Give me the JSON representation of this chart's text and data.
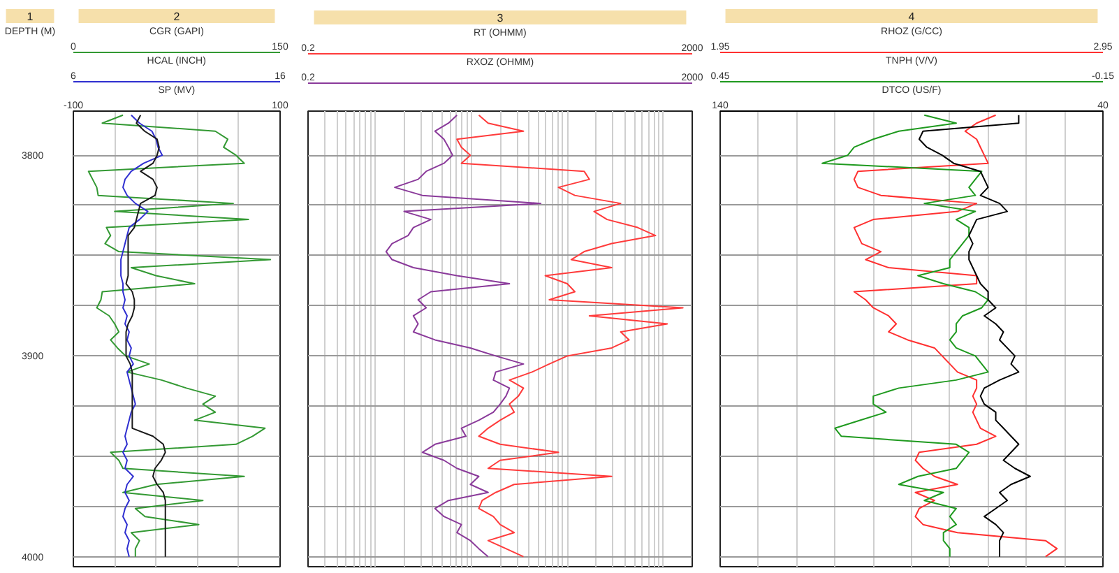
{
  "chart_data": [
    {
      "type": "line",
      "title": "2",
      "annotations": [
        "1"
      ],
      "ylabel": "DEPTH (M)",
      "xlabel": "CGR (GAPI)",
      "x2label": "HCAL (INCH)",
      "xlim": [
        0,
        150
      ],
      "xticks": [
        0,
        {
          "value": 30,
          "label": null
        },
        {
          "value": 60,
          "label": null
        },
        {
          "value": 90,
          "label": null
        },
        {
          "value": 120,
          "label": null
        },
        150
      ],
      "x2lim": [
        6,
        16
      ],
      "x2ticks": [
        6,
        16
      ],
      "ylim": [
        4005,
        3778
      ],
      "yticks": [
        3800,
        {
          "value": 3825,
          "label": null
        },
        {
          "value": 3850,
          "label": null
        },
        {
          "value": 3875,
          "label": null
        },
        3900,
        {
          "value": 3925,
          "label": null
        },
        {
          "value": 3950,
          "label": null
        },
        {
          "value": 3975,
          "label": null
        },
        4000
      ],
      "grid": true,
      "series": [
        {
          "color": "#339933",
          "x": [
            36,
            21,
            103,
            112,
            109,
            118,
            124,
            11,
            14,
            17,
            18,
            116,
            30,
            127,
            24,
            27,
            23,
            33,
            143,
            42,
            60,
            88,
            21,
            20,
            17,
            26,
            30,
            33,
            27,
            32,
            38,
            55,
            39,
            64,
            82,
            103,
            94,
            103,
            88,
            139,
            130,
            118,
            27,
            33,
            36,
            124,
            60,
            36,
            94,
            45,
            52,
            91,
            42,
            48,
            45,
            45
          ],
          "values": [
            3780,
            3784,
            3788,
            3792,
            3796,
            3800,
            3804,
            3808,
            3812,
            3816,
            3820,
            3824,
            3828,
            3832,
            3836,
            3840,
            3844,
            3848,
            3852,
            3856,
            3860,
            3864,
            3868,
            3872,
            3876,
            3880,
            3884,
            3888,
            3892,
            3896,
            3900,
            3904,
            3908,
            3912,
            3916,
            3920,
            3924,
            3928,
            3932,
            3936,
            3940,
            3944,
            3948,
            3952,
            3956,
            3960,
            3964,
            3968,
            3972,
            3976,
            3980,
            3984,
            3988,
            3992,
            3996,
            4000
          ]
        },
        {
          "color": "#2f2fd0",
          "axis": "x2",
          "x": [
            8.8,
            9.2,
            9.8,
            10.0,
            10.1,
            10.3,
            9.4,
            8.8,
            8.5,
            8.4,
            8.6,
            9.0,
            9.6,
            9.2,
            8.7,
            8.6,
            8.5,
            8.4,
            8.3,
            8.3,
            8.3,
            8.4,
            8.4,
            8.5,
            8.4,
            8.6,
            8.5,
            8.7,
            8.6,
            8.8,
            8.7,
            8.9,
            8.6,
            8.7,
            8.8,
            8.9,
            9.0,
            8.8,
            8.7,
            8.6,
            8.5,
            8.6,
            8.4,
            8.6,
            8.5,
            8.9,
            8.6,
            8.5,
            8.7,
            8.5,
            8.4,
            8.6,
            8.5,
            8.7,
            8.6,
            8.7
          ],
          "values": [
            3780,
            3784,
            3788,
            3792,
            3796,
            3800,
            3804,
            3808,
            3812,
            3816,
            3820,
            3824,
            3828,
            3832,
            3836,
            3840,
            3844,
            3848,
            3852,
            3856,
            3860,
            3864,
            3868,
            3872,
            3876,
            3880,
            3884,
            3888,
            3892,
            3896,
            3900,
            3904,
            3908,
            3912,
            3916,
            3920,
            3924,
            3928,
            3932,
            3936,
            3940,
            3944,
            3948,
            3952,
            3956,
            3960,
            3964,
            3968,
            3972,
            3976,
            3980,
            3984,
            3988,
            3992,
            3996,
            4000
          ]
        }
      ]
    },
    {
      "type": "line",
      "xlabel": "SP (MV)",
      "xlim": [
        -100,
        100
      ],
      "xticks": [
        -100,
        100
      ],
      "ylim": [
        4005,
        3778
      ],
      "yticks": [
        3800,
        {
          "value": 3825,
          "label": null
        },
        {
          "value": 3850,
          "label": null
        },
        {
          "value": 3875,
          "label": null
        },
        3900,
        {
          "value": 3925,
          "label": null
        },
        {
          "value": 3950,
          "label": null
        },
        {
          "value": 3975,
          "label": null
        },
        4000
      ],
      "tick_labels": "x",
      "grid": true,
      "series": [
        {
          "color": "#1a1a1a",
          "x": [
            -35,
            -39,
            -31,
            -19,
            -17,
            -19,
            -23,
            -35,
            -23,
            -19,
            -21,
            -35,
            -37,
            -39,
            -41,
            -47,
            -47,
            -47,
            -47,
            -47,
            -47,
            -49,
            -43,
            -41,
            -41,
            -43,
            -47,
            -49,
            -49,
            -49,
            -49,
            -45,
            -43,
            -43,
            -43,
            -43,
            -43,
            -43,
            -43,
            -43,
            -23,
            -13,
            -11,
            -15,
            -21,
            -23,
            -19,
            -13,
            -11,
            -11,
            -11,
            -11,
            -11,
            -11,
            -11,
            -11
          ],
          "values": [
            3780,
            3784,
            3788,
            3792,
            3796,
            3800,
            3804,
            3808,
            3812,
            3816,
            3820,
            3824,
            3828,
            3832,
            3836,
            3840,
            3844,
            3848,
            3852,
            3856,
            3860,
            3864,
            3868,
            3872,
            3876,
            3880,
            3884,
            3888,
            3892,
            3896,
            3900,
            3904,
            3908,
            3912,
            3916,
            3920,
            3924,
            3928,
            3932,
            3936,
            3940,
            3944,
            3948,
            3952,
            3956,
            3960,
            3964,
            3968,
            3972,
            3976,
            3980,
            3984,
            3988,
            3992,
            3996,
            4000
          ]
        }
      ]
    },
    {
      "type": "line",
      "title": "3",
      "xlabel": "RT (OHMM)",
      "log": "x",
      "xlim": [
        0.2,
        2000
      ],
      "xticks": [
        0.2,
        {
          "value": 0.3,
          "label": null
        },
        {
          "value": 0.4,
          "label": null
        },
        {
          "value": 0.5,
          "label": null
        },
        {
          "value": 0.6,
          "label": null
        },
        {
          "value": 0.7,
          "label": null
        },
        {
          "value": 0.8,
          "label": null
        },
        {
          "value": 0.9,
          "label": null
        },
        {
          "value": 1,
          "label": null
        },
        {
          "value": 2,
          "label": null
        },
        {
          "value": 3,
          "label": null
        },
        {
          "value": 4,
          "label": null
        },
        {
          "value": 5,
          "label": null
        },
        {
          "value": 6,
          "label": null
        },
        {
          "value": 7,
          "label": null
        },
        {
          "value": 8,
          "label": null
        },
        {
          "value": 9,
          "label": null
        },
        {
          "value": 10,
          "label": null
        },
        {
          "value": 20,
          "label": null
        },
        {
          "value": 30,
          "label": null
        },
        {
          "value": 40,
          "label": null
        },
        {
          "value": 50,
          "label": null
        },
        {
          "value": 60,
          "label": null
        },
        {
          "value": 70,
          "label": null
        },
        {
          "value": 80,
          "label": null
        },
        {
          "value": 90,
          "label": null
        },
        {
          "value": 100,
          "label": null
        },
        {
          "value": 200,
          "label": null
        },
        {
          "value": 300,
          "label": null
        },
        {
          "value": 400,
          "label": null
        },
        {
          "value": 500,
          "label": null
        },
        {
          "value": 600,
          "label": null
        },
        {
          "value": 700,
          "label": null
        },
        {
          "value": 800,
          "label": null
        },
        {
          "value": 900,
          "label": null
        },
        {
          "value": 1000,
          "label": null
        },
        2000
      ],
      "ylim": [
        4005,
        3778
      ],
      "yticks": [
        3800,
        {
          "value": 3825,
          "label": null
        },
        {
          "value": 3850,
          "label": null
        },
        {
          "value": 3875,
          "label": null
        },
        3900,
        {
          "value": 3925,
          "label": null
        },
        {
          "value": 3950,
          "label": null
        },
        {
          "value": 3975,
          "label": null
        },
        4000
      ],
      "tick_labels": "x",
      "grid": true,
      "series": [
        {
          "color": "#ff3b3b",
          "x": [
            12,
            15,
            35,
            7.1,
            7.9,
            9.8,
            7.9,
            150,
            170,
            81,
            120,
            360,
            190,
            260,
            540,
            830,
            290,
            150,
            110,
            290,
            59,
            100,
            120,
            65,
            1600,
            170,
            1100,
            360,
            440,
            290,
            100,
            65,
            43,
            25,
            35,
            31,
            25,
            28,
            20,
            15,
            12,
            20,
            81,
            20,
            15,
            290,
            28,
            18,
            13,
            12,
            17,
            20,
            28,
            15,
            23,
            35
          ],
          "values": [
            3780,
            3784,
            3788,
            3792,
            3796,
            3800,
            3804,
            3808,
            3812,
            3816,
            3820,
            3824,
            3828,
            3832,
            3836,
            3840,
            3844,
            3848,
            3852,
            3856,
            3860,
            3864,
            3868,
            3872,
            3876,
            3880,
            3884,
            3888,
            3892,
            3896,
            3900,
            3904,
            3908,
            3912,
            3916,
            3920,
            3924,
            3928,
            3932,
            3936,
            3940,
            3944,
            3948,
            3952,
            3956,
            3960,
            3964,
            3968,
            3972,
            3976,
            3980,
            3984,
            3988,
            3992,
            3996,
            4000
          ]
        }
      ]
    },
    {
      "type": "line",
      "xlabel": "RXOZ (OHMM)",
      "log": "x",
      "xlim": [
        0.2,
        2000
      ],
      "xticks": [
        0.2,
        2000
      ],
      "ylim": [
        4005,
        3778
      ],
      "yticks": [
        3800,
        {
          "value": 3825,
          "label": null
        },
        {
          "value": 3850,
          "label": null
        },
        {
          "value": 3875,
          "label": null
        },
        3900,
        {
          "value": 3925,
          "label": null
        },
        {
          "value": 3950,
          "label": null
        },
        {
          "value": 3975,
          "label": null
        },
        4000
      ],
      "tick_labels": "x",
      "grid": true,
      "series": [
        {
          "color": "#8a3a9a",
          "x": [
            7.1,
            5.8,
            4.2,
            5.2,
            5.8,
            6.4,
            5.2,
            3.4,
            2.8,
            1.6,
            3.1,
            53,
            2.0,
            3.8,
            2.5,
            2.2,
            1.5,
            1.3,
            1.5,
            2.5,
            7.1,
            25,
            3.8,
            2.8,
            3.4,
            2.5,
            2.8,
            2.5,
            4.2,
            9.8,
            18,
            35,
            18,
            17,
            25,
            23,
            20,
            17,
            12,
            7.9,
            8.8,
            4.2,
            3.1,
            5.2,
            7.1,
            12,
            9.8,
            15,
            5.8,
            4.2,
            5.2,
            7.9,
            7.1,
            9.8,
            12,
            15
          ],
          "values": [
            3780,
            3784,
            3788,
            3792,
            3796,
            3800,
            3804,
            3808,
            3812,
            3816,
            3820,
            3824,
            3828,
            3832,
            3836,
            3840,
            3844,
            3848,
            3852,
            3856,
            3860,
            3864,
            3868,
            3872,
            3876,
            3880,
            3884,
            3888,
            3892,
            3896,
            3900,
            3904,
            3908,
            3912,
            3916,
            3920,
            3924,
            3928,
            3932,
            3936,
            3940,
            3944,
            3948,
            3952,
            3956,
            3960,
            3964,
            3968,
            3972,
            3976,
            3980,
            3984,
            3988,
            3992,
            3996,
            4000
          ]
        }
      ]
    },
    {
      "type": "line",
      "title": "4",
      "xlabel": "RHOZ (G/CC)",
      "x2label": "TNPH (V/V)",
      "xlim": [
        1.95,
        2.95
      ],
      "xticks": [
        1.95,
        {
          "value": 2.05,
          "label": null
        },
        {
          "value": 2.15,
          "label": null
        },
        {
          "value": 2.25,
          "label": null
        },
        {
          "value": 2.35,
          "label": null
        },
        {
          "value": 2.45,
          "label": null
        },
        {
          "value": 2.55,
          "label": null
        },
        {
          "value": 2.65,
          "label": null
        },
        {
          "value": 2.75,
          "label": null
        },
        {
          "value": 2.85,
          "label": null
        },
        2.95
      ],
      "x2lim": [
        0.45,
        -0.15
      ],
      "x2ticks": [
        0.45,
        -0.15
      ],
      "ylim": [
        4005,
        3778
      ],
      "yticks": [
        3800,
        {
          "value": 3825,
          "label": null
        },
        {
          "value": 3850,
          "label": null
        },
        {
          "value": 3875,
          "label": null
        },
        3900,
        {
          "value": 3925,
          "label": null
        },
        {
          "value": 3950,
          "label": null
        },
        {
          "value": 3975,
          "label": null
        },
        4000
      ],
      "tick_labels": "x",
      "grid": true,
      "series": [
        {
          "color": "#ff3030",
          "x": [
            2.67,
            2.62,
            2.59,
            2.62,
            2.63,
            2.64,
            2.65,
            2.31,
            2.3,
            2.31,
            2.37,
            2.62,
            2.57,
            2.35,
            2.3,
            2.31,
            2.32,
            2.37,
            2.33,
            2.39,
            2.62,
            2.62,
            2.3,
            2.33,
            2.35,
            2.39,
            2.41,
            2.39,
            2.44,
            2.51,
            2.53,
            2.55,
            2.57,
            2.62,
            2.62,
            2.61,
            2.62,
            2.61,
            2.62,
            2.63,
            2.67,
            2.62,
            2.47,
            2.46,
            2.48,
            2.51,
            2.57,
            2.46,
            2.51,
            2.47,
            2.46,
            2.48,
            2.57,
            2.8,
            2.83,
            2.8
          ],
          "values": [
            3780,
            3784,
            3788,
            3792,
            3796,
            3800,
            3804,
            3808,
            3812,
            3816,
            3820,
            3824,
            3828,
            3832,
            3836,
            3840,
            3844,
            3848,
            3852,
            3856,
            3860,
            3864,
            3868,
            3872,
            3876,
            3880,
            3884,
            3888,
            3892,
            3896,
            3900,
            3904,
            3908,
            3912,
            3916,
            3920,
            3924,
            3928,
            3932,
            3936,
            3940,
            3944,
            3948,
            3952,
            3956,
            3960,
            3964,
            3968,
            3972,
            3976,
            3980,
            3984,
            3988,
            3992,
            3996,
            4000
          ]
        },
        {
          "color": "#1f9a1f",
          "axis": "x2",
          "x": [
            0.13,
            0.08,
            0.17,
            0.21,
            0.24,
            0.25,
            0.29,
            0.04,
            0.05,
            0.06,
            0.05,
            0.13,
            0.05,
            0.08,
            0.06,
            0.06,
            0.07,
            0.08,
            0.09,
            0.09,
            0.14,
            0.1,
            0.05,
            0.03,
            0.04,
            0.07,
            0.08,
            0.08,
            0.09,
            0.08,
            0.05,
            0.04,
            0.03,
            0.08,
            0.17,
            0.21,
            0.21,
            0.19,
            0.23,
            0.27,
            0.26,
            0.08,
            0.06,
            0.07,
            0.08,
            0.14,
            0.17,
            0.1,
            0.13,
            0.08,
            0.09,
            0.08,
            0.1,
            0.1,
            0.09,
            0.09
          ],
          "values": [
            3780,
            3784,
            3788,
            3792,
            3796,
            3800,
            3804,
            3808,
            3812,
            3816,
            3820,
            3824,
            3828,
            3832,
            3836,
            3840,
            3844,
            3848,
            3852,
            3856,
            3860,
            3864,
            3868,
            3872,
            3876,
            3880,
            3884,
            3888,
            3892,
            3896,
            3900,
            3904,
            3908,
            3912,
            3916,
            3920,
            3924,
            3928,
            3932,
            3936,
            3940,
            3944,
            3948,
            3952,
            3956,
            3960,
            3964,
            3968,
            3972,
            3976,
            3980,
            3984,
            3988,
            3992,
            3996,
            4000
          ]
        }
      ]
    },
    {
      "type": "line",
      "xlabel": "DTCO (US/F)",
      "xlim": [
        140,
        40
      ],
      "xticks": [
        140,
        40
      ],
      "ylim": [
        4005,
        3778
      ],
      "yticks": [
        3800,
        {
          "value": 3825,
          "label": null
        },
        {
          "value": 3850,
          "label": null
        },
        {
          "value": 3875,
          "label": null
        },
        3900,
        {
          "value": 3925,
          "label": null
        },
        {
          "value": 3950,
          "label": null
        },
        {
          "value": 3975,
          "label": null
        },
        4000
      ],
      "tick_labels": "x",
      "grid": true,
      "series": [
        {
          "color": "#000000",
          "x": [
            62,
            62,
            87,
            88,
            86,
            82,
            79,
            72,
            71,
            70,
            72,
            67,
            65,
            73,
            74,
            75,
            74,
            75,
            75,
            74,
            73,
            72,
            70,
            70,
            68,
            71,
            68,
            66,
            67,
            65,
            63,
            64,
            62,
            67,
            71,
            72,
            71,
            68,
            68,
            66,
            64,
            62,
            64,
            66,
            63,
            59,
            64,
            67,
            65,
            68,
            71,
            68,
            66,
            67,
            67,
            67
          ],
          "values": [
            3780,
            3784,
            3788,
            3792,
            3796,
            3800,
            3804,
            3808,
            3812,
            3816,
            3820,
            3824,
            3828,
            3832,
            3836,
            3840,
            3844,
            3848,
            3852,
            3856,
            3860,
            3864,
            3868,
            3872,
            3876,
            3880,
            3884,
            3888,
            3892,
            3896,
            3900,
            3904,
            3908,
            3912,
            3916,
            3920,
            3924,
            3928,
            3932,
            3936,
            3940,
            3944,
            3948,
            3952,
            3956,
            3960,
            3964,
            3968,
            3972,
            3976,
            3980,
            3984,
            3988,
            3992,
            3996,
            4000
          ]
        }
      ]
    }
  ]
}
